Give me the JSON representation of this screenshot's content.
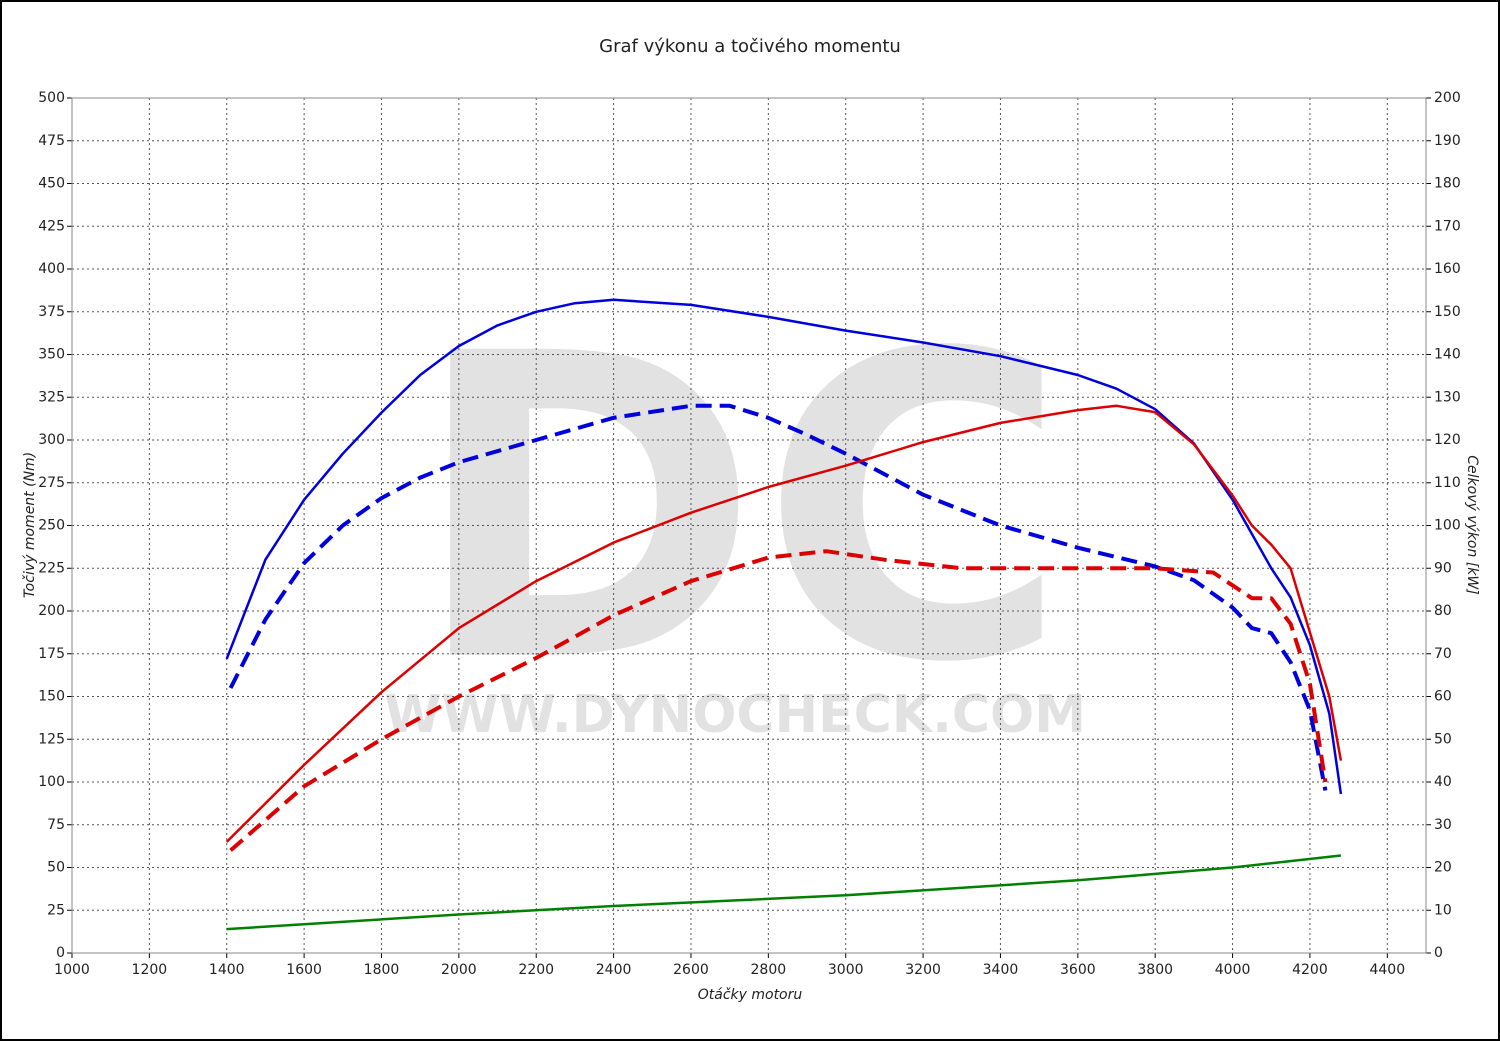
{
  "chart_data": {
    "type": "line",
    "title": "Graf výkonu a točivého momentu",
    "xlabel": "Otáčky motoru",
    "ylabel": "Točivý moment (Nm)",
    "y2label": "Celkový výkon [kW]",
    "watermark": [
      "DC",
      "WWW.DYNOCHECK.COM"
    ],
    "xlim": [
      1000,
      4500
    ],
    "ylim": [
      0,
      500
    ],
    "y2lim": [
      0,
      200
    ],
    "xticks": [
      1000,
      1200,
      1400,
      1600,
      1800,
      2000,
      2200,
      2400,
      2600,
      2800,
      3000,
      3200,
      3400,
      3600,
      3800,
      4000,
      4200,
      4400
    ],
    "yticks": [
      0,
      25,
      50,
      75,
      100,
      125,
      150,
      175,
      200,
      225,
      250,
      275,
      300,
      325,
      350,
      375,
      400,
      425,
      450,
      475,
      500
    ],
    "y2ticks": [
      0,
      10,
      20,
      30,
      40,
      50,
      60,
      70,
      80,
      90,
      100,
      110,
      120,
      130,
      140,
      150,
      160,
      170,
      180,
      190,
      200
    ],
    "grid": true,
    "series": [
      {
        "color": "#0000dd",
        "dashed": false,
        "axis": "y",
        "x": [
          1400,
          1500,
          1600,
          1700,
          1800,
          1900,
          2000,
          2100,
          2200,
          2300,
          2400,
          2600,
          2800,
          3000,
          3200,
          3400,
          3600,
          3700,
          3800,
          3900,
          4000,
          4100,
          4150,
          4200,
          4250,
          4280
        ],
        "values": [
          172,
          230,
          265,
          292,
          316,
          338,
          355,
          367,
          375,
          380,
          382,
          379,
          372,
          364,
          357,
          349,
          338,
          330,
          318,
          298,
          265,
          225,
          208,
          180,
          140,
          93
        ]
      },
      {
        "color": "#0000dd",
        "dashed": true,
        "axis": "y",
        "x": [
          1410,
          1500,
          1600,
          1700,
          1800,
          1900,
          2000,
          2200,
          2400,
          2600,
          2700,
          2800,
          2900,
          3000,
          3200,
          3400,
          3600,
          3800,
          3900,
          4000,
          4050,
          4100,
          4150,
          4200,
          4240
        ],
        "values": [
          155,
          195,
          228,
          250,
          266,
          278,
          287,
          300,
          313,
          320,
          320,
          313,
          303,
          292,
          268,
          250,
          237,
          226,
          218,
          202,
          190,
          187,
          170,
          142,
          95
        ]
      },
      {
        "color": "#dd0000",
        "dashed": false,
        "axis": "y2",
        "x": [
          1400,
          1600,
          1800,
          2000,
          2200,
          2400,
          2600,
          2800,
          3000,
          3200,
          3400,
          3600,
          3700,
          3800,
          3900,
          4000,
          4050,
          4100,
          4150,
          4200,
          4250,
          4280
        ],
        "values": [
          26,
          44,
          61,
          76,
          87,
          96,
          103,
          109,
          114,
          119.5,
          124,
          127,
          128,
          126.5,
          119,
          107,
          100,
          95.5,
          90,
          75,
          60,
          45
        ]
      },
      {
        "color": "#dd0000",
        "dashed": true,
        "axis": "y2",
        "x": [
          1410,
          1600,
          1800,
          2000,
          2200,
          2400,
          2600,
          2800,
          2950,
          3100,
          3300,
          3500,
          3800,
          3950,
          4050,
          4100,
          4150,
          4200,
          4240
        ],
        "values": [
          24,
          39,
          50,
          60,
          69,
          79,
          87,
          92.5,
          94,
          92,
          90,
          90,
          90,
          89,
          83,
          83,
          77,
          63,
          40
        ]
      },
      {
        "color": "#008000",
        "dashed": false,
        "axis": "y2",
        "x": [
          1400,
          2000,
          2400,
          3000,
          3600,
          4000,
          4280
        ],
        "values": [
          5.6,
          9,
          11,
          13.5,
          17,
          20,
          22.8
        ]
      }
    ]
  }
}
